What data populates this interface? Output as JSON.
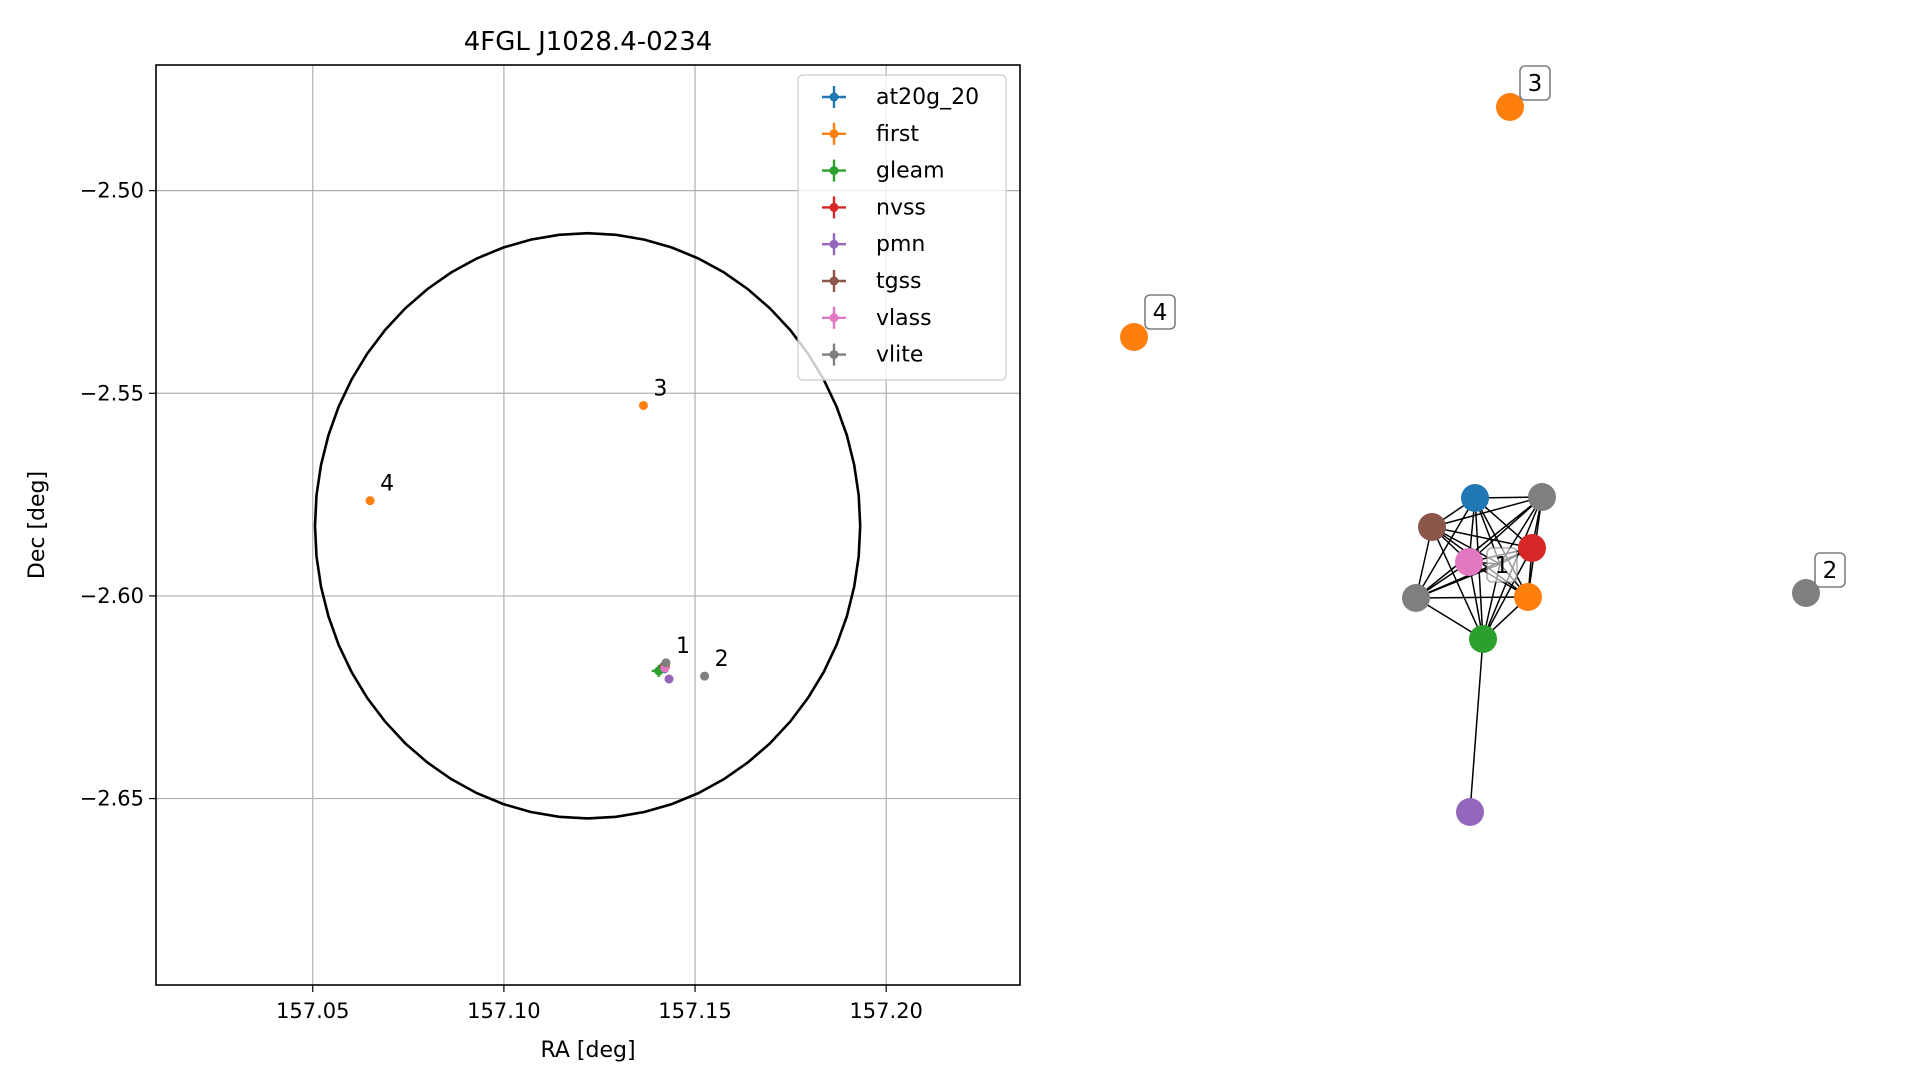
{
  "chart_data": [
    {
      "type": "scatter",
      "title": "4FGL J1028.4-0234",
      "xlabel": "RA [deg]",
      "ylabel": "Dec [deg]",
      "xlim": [
        157.009,
        157.235
      ],
      "ylim": [
        -2.696,
        -2.469
      ],
      "xticks": [
        157.05,
        157.1,
        157.15,
        157.2
      ],
      "xtick_labels": [
        "157.05",
        "157.10",
        "157.15",
        "157.20"
      ],
      "yticks": [
        -2.5,
        -2.55,
        -2.6,
        -2.65
      ],
      "ytick_labels": [
        "−2.50",
        "−2.55",
        "−2.60",
        "−2.65"
      ],
      "grid": true,
      "legend_position": "top-right",
      "ellipse": {
        "center": [
          157.1219,
          -2.5827
        ],
        "half_width": 0.0713,
        "half_height": 0.0722
      },
      "series": [
        {
          "name": "at20g_20",
          "color": "#1f77b4",
          "points": [
            {
              "x": 157.142,
              "y": -2.618
            }
          ]
        },
        {
          "name": "first",
          "color": "#ff7f0e",
          "points": [
            {
              "x": 157.1365,
              "y": -2.553,
              "label": "3"
            },
            {
              "x": 157.065,
              "y": -2.5765,
              "label": "4"
            },
            {
              "x": 157.1423,
              "y": -2.6172
            }
          ]
        },
        {
          "name": "gleam",
          "color": "#2ca02c",
          "points": [
            {
              "x": 157.1405,
              "y": -2.6185
            }
          ]
        },
        {
          "name": "nvss",
          "color": "#d62728",
          "points": [
            {
              "x": 157.1422,
              "y": -2.6176
            }
          ]
        },
        {
          "name": "pmn",
          "color": "#9467bd",
          "points": [
            {
              "x": 157.1432,
              "y": -2.6205
            }
          ]
        },
        {
          "name": "tgss",
          "color": "#8c564b",
          "points": [
            {
              "x": 157.1418,
              "y": -2.6174
            }
          ]
        },
        {
          "name": "vlass",
          "color": "#e377c2",
          "points": [
            {
              "x": 157.1421,
              "y": -2.6178
            }
          ]
        },
        {
          "name": "vlite",
          "color": "#7f7f7f",
          "points": [
            {
              "x": 157.1424,
              "y": -2.6165,
              "label": "1"
            },
            {
              "x": 157.1525,
              "y": -2.6198,
              "label": "2"
            }
          ]
        }
      ]
    },
    {
      "type": "network",
      "nodes": [
        {
          "id": "n_at20g",
          "series": "at20g_20",
          "color": "#1f77b4"
        },
        {
          "id": "n_vlite1",
          "series": "vlite",
          "color": "#7f7f7f"
        },
        {
          "id": "n_tgss",
          "series": "tgss",
          "color": "#8c564b"
        },
        {
          "id": "n_nvss",
          "series": "nvss",
          "color": "#d62728"
        },
        {
          "id": "n_vlass",
          "series": "vlass",
          "color": "#e377c2"
        },
        {
          "id": "n_vlite1b",
          "series": "vlite",
          "color": "#7f7f7f"
        },
        {
          "id": "n_first1",
          "series": "first",
          "color": "#ff7f0e"
        },
        {
          "id": "n_gleam",
          "series": "gleam",
          "color": "#2ca02c"
        },
        {
          "id": "n_pmn",
          "series": "pmn",
          "color": "#9467bd"
        },
        {
          "id": "n_first3",
          "series": "first",
          "color": "#ff7f0e",
          "label": "3"
        },
        {
          "id": "n_first4",
          "series": "first",
          "color": "#ff7f0e",
          "label": "4"
        },
        {
          "id": "n_vlite2",
          "series": "vlite",
          "color": "#7f7f7f",
          "label": "2"
        },
        {
          "id": "n_hub",
          "series": "vlite",
          "color": "#7f7f7f",
          "label": "1"
        }
      ],
      "edges": [
        [
          "n_at20g",
          "n_vlite1"
        ],
        [
          "n_at20g",
          "n_tgss"
        ],
        [
          "n_at20g",
          "n_nvss"
        ],
        [
          "n_at20g",
          "n_vlass"
        ],
        [
          "n_at20g",
          "n_vlite1b"
        ],
        [
          "n_at20g",
          "n_first1"
        ],
        [
          "n_at20g",
          "n_gleam"
        ],
        [
          "n_at20g",
          "n_hub"
        ],
        [
          "n_vlite1",
          "n_tgss"
        ],
        [
          "n_vlite1",
          "n_nvss"
        ],
        [
          "n_vlite1",
          "n_vlass"
        ],
        [
          "n_vlite1",
          "n_vlite1b"
        ],
        [
          "n_vlite1",
          "n_first1"
        ],
        [
          "n_vlite1",
          "n_gleam"
        ],
        [
          "n_vlite1",
          "n_hub"
        ],
        [
          "n_tgss",
          "n_nvss"
        ],
        [
          "n_tgss",
          "n_vlass"
        ],
        [
          "n_tgss",
          "n_vlite1b"
        ],
        [
          "n_tgss",
          "n_first1"
        ],
        [
          "n_tgss",
          "n_gleam"
        ],
        [
          "n_tgss",
          "n_hub"
        ],
        [
          "n_nvss",
          "n_vlass"
        ],
        [
          "n_nvss",
          "n_vlite1b"
        ],
        [
          "n_nvss",
          "n_first1"
        ],
        [
          "n_nvss",
          "n_gleam"
        ],
        [
          "n_nvss",
          "n_hub"
        ],
        [
          "n_vlass",
          "n_vlite1b"
        ],
        [
          "n_vlass",
          "n_first1"
        ],
        [
          "n_vlass",
          "n_gleam"
        ],
        [
          "n_vlass",
          "n_hub"
        ],
        [
          "n_vlite1b",
          "n_first1"
        ],
        [
          "n_vlite1b",
          "n_gleam"
        ],
        [
          "n_vlite1b",
          "n_hub"
        ],
        [
          "n_first1",
          "n_gleam"
        ],
        [
          "n_first1",
          "n_hub"
        ],
        [
          "n_gleam",
          "n_hub"
        ],
        [
          "n_gleam",
          "n_pmn"
        ]
      ]
    }
  ]
}
